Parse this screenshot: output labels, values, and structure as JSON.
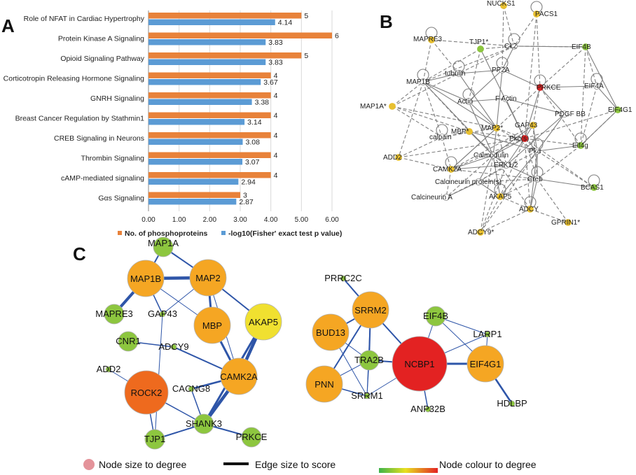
{
  "panels": {
    "a": "A",
    "b": "B",
    "c": "C"
  },
  "chart_data": [
    {
      "type": "bar",
      "orientation": "horizontal",
      "categories": [
        "Role of NFAT in Cardiac Hypertrophy",
        "Protein Kinase A Signaling",
        "Opioid Signaling Pathway",
        "Corticotropin Releasing Hormone Signaling",
        "GNRH Signaling",
        "Breast Cancer Regulation by Stathmin1",
        "CREB Signaling in Neurons",
        "Thrombin Signaling",
        "cAMP-mediated signaling",
        "Gαs Signaling"
      ],
      "series": [
        {
          "name": "No. of phosphoproteins",
          "color": "#e8823a",
          "values": [
            5,
            6,
            5,
            4,
            4,
            4,
            4,
            4,
            4,
            3
          ],
          "labels": [
            "5",
            "6",
            "5",
            "4",
            "4",
            "4",
            "4",
            "4",
            "4",
            "3"
          ]
        },
        {
          "name": "-log10(Fisher' exact test p value)",
          "color": "#5b9bd5",
          "values": [
            4.14,
            3.83,
            3.83,
            3.67,
            3.38,
            3.14,
            3.08,
            3.07,
            2.94,
            2.87
          ],
          "labels": [
            "4.14",
            "3.83",
            "3.83",
            "3.67",
            "3.38",
            "3.14",
            "3.08",
            "3.07",
            "2.94",
            "2.87"
          ]
        }
      ],
      "xlim": [
        0,
        6
      ],
      "xticks": [
        "0.00",
        "1.00",
        "2.00",
        "3.00",
        "4.00",
        "5.00",
        "6.00"
      ],
      "grid": true,
      "legend": "bottom"
    }
  ],
  "network_b": {
    "nodes": [
      {
        "id": "NUCKS1",
        "label": "NUCKS1",
        "color": "#e8c030",
        "shape": "ring"
      },
      {
        "id": "PACS1",
        "label": "PACS1",
        "color": "#e8c030",
        "shape": "ring"
      },
      {
        "id": "MAPRE3",
        "label": "MAPRE3",
        "color": "#e8c030",
        "shape": "ring"
      },
      {
        "id": "TJP1",
        "label": "TJP1*",
        "color": "#8dc63f",
        "shape": "ring"
      },
      {
        "id": "Ck2",
        "label": "Ck2",
        "color": "#ffffff",
        "shape": "ring"
      },
      {
        "id": "EIF4B",
        "label": "EIF4B",
        "color": "#8dc63f",
        "shape": "ring"
      },
      {
        "id": "tubulin",
        "label": "tubulin",
        "color": "#ffffff",
        "shape": "ring"
      },
      {
        "id": "PP2A",
        "label": "PP2A",
        "color": "#ffffff",
        "shape": "ring"
      },
      {
        "id": "MAP1B",
        "label": "MAP1B",
        "color": "#ffffff",
        "shape": "ring"
      },
      {
        "id": "PRKCE",
        "label": "PRKCE",
        "color": "#d42020",
        "shape": "ring"
      },
      {
        "id": "EIF4A",
        "label": "EIF4A",
        "color": "#ffffff",
        "shape": "ring"
      },
      {
        "id": "Actin",
        "label": "Actin",
        "color": "#ffffff",
        "shape": "ring"
      },
      {
        "id": "FActin",
        "label": "F Actin",
        "color": "#ffffff",
        "shape": "ring"
      },
      {
        "id": "EIF4G1",
        "label": "EIF4G1",
        "color": "#8dc63f",
        "shape": "ring"
      },
      {
        "id": "MAP1A",
        "label": "MAP1A*",
        "color": "#e8c030",
        "shape": "ring"
      },
      {
        "id": "PDGFBB",
        "label": "PDGF BB",
        "color": "#ffffff",
        "shape": "ring"
      },
      {
        "id": "MBP",
        "label": "MBP*",
        "color": "#e8c030",
        "shape": "ring"
      },
      {
        "id": "MAP2",
        "label": "MAP2*",
        "color": "#e8c030",
        "shape": "ring"
      },
      {
        "id": "Pkc",
        "label": "Pkc(s)",
        "color": "#d42020",
        "shape": "ring"
      },
      {
        "id": "GAP43",
        "label": "GAP43",
        "color": "#e8c030",
        "shape": "ring"
      },
      {
        "id": "calpain",
        "label": "calpain",
        "color": "#ffffff",
        "shape": "ring"
      },
      {
        "id": "Eif4g",
        "label": "Eif4g",
        "color": "#8dc63f",
        "shape": "ring"
      },
      {
        "id": "Calmodulin",
        "label": "Calmodulin",
        "color": "#ffffff",
        "shape": "ring"
      },
      {
        "id": "Pka",
        "label": "Pka",
        "color": "#ffffff",
        "shape": "ring"
      },
      {
        "id": "ADD2",
        "label": "ADD2",
        "color": "#e8c030",
        "shape": "ring"
      },
      {
        "id": "CAMK2A",
        "label": "CAMK2A",
        "color": "#e8c030",
        "shape": "ring"
      },
      {
        "id": "ERK12",
        "label": "ERK1/2",
        "color": "#ffffff",
        "shape": "ring"
      },
      {
        "id": "Creb",
        "label": "Creb",
        "color": "#ffffff",
        "shape": "ring"
      },
      {
        "id": "BCAS1",
        "label": "BCAS1",
        "color": "#8dc63f",
        "shape": "ring"
      },
      {
        "id": "CalcProt",
        "label": "Calcineurin protein(s)",
        "color": "#ffffff",
        "shape": "ring"
      },
      {
        "id": "CalcA",
        "label": "Calcineurin A",
        "color": "#ffffff",
        "shape": "ring"
      },
      {
        "id": "AKAP5",
        "label": "AKAP5",
        "color": "#e8c030",
        "shape": "ring"
      },
      {
        "id": "ADCY",
        "label": "ADCY",
        "color": "#e8c030",
        "shape": "ring"
      },
      {
        "id": "GPRIN1",
        "label": "GPRIN1*",
        "color": "#e8c030",
        "shape": "ring"
      },
      {
        "id": "ADCY9",
        "label": "ADCY9*",
        "color": "#e8c030",
        "shape": "ring"
      }
    ]
  },
  "network_c": {
    "nodes": [
      {
        "id": "MAP1A",
        "label": "MAP1A",
        "color": "#8dc63f",
        "size": "s"
      },
      {
        "id": "MAP1B",
        "label": "MAP1B",
        "color": "#f5a623",
        "size": "l"
      },
      {
        "id": "MAP2",
        "label": "MAP2",
        "color": "#f5a623",
        "size": "l"
      },
      {
        "id": "MAPRE3",
        "label": "MAPRE3",
        "color": "#8dc63f",
        "size": "s"
      },
      {
        "id": "GAP43",
        "label": "GAP43",
        "color": "#8dc63f",
        "size": "t"
      },
      {
        "id": "MBP",
        "label": "MBP",
        "color": "#f5a623",
        "size": "l"
      },
      {
        "id": "AKAP5",
        "label": "AKAP5",
        "color": "#f0e030",
        "size": "l"
      },
      {
        "id": "CNR1",
        "label": "CNR1",
        "color": "#8dc63f",
        "size": "s"
      },
      {
        "id": "ADCY9",
        "label": "ADCY9",
        "color": "#8dc63f",
        "size": "t"
      },
      {
        "id": "ADD2",
        "label": "ADD2",
        "color": "#8dc63f",
        "size": "t"
      },
      {
        "id": "CAMK2A",
        "label": "CAMK2A",
        "color": "#f5a623",
        "size": "l"
      },
      {
        "id": "ROCK2",
        "label": "ROCK2",
        "color": "#ee6a1e",
        "size": "xl"
      },
      {
        "id": "CACNG8",
        "label": "CACNG8",
        "color": "#8dc63f",
        "size": "t"
      },
      {
        "id": "SHANK3",
        "label": "SHANK3",
        "color": "#8dc63f",
        "size": "s"
      },
      {
        "id": "TJP1",
        "label": "TJP1",
        "color": "#8dc63f",
        "size": "s"
      },
      {
        "id": "PRKCE",
        "label": "PRKCE",
        "color": "#8dc63f",
        "size": "s"
      },
      {
        "id": "PRRC2C",
        "label": "PRRC2C",
        "color": "#8dc63f",
        "size": "t"
      },
      {
        "id": "SRRM2",
        "label": "SRRM2",
        "color": "#f5a623",
        "size": "l"
      },
      {
        "id": "BUD13",
        "label": "BUD13",
        "color": "#f5a623",
        "size": "l"
      },
      {
        "id": "TRA2B",
        "label": "TRA2B",
        "color": "#8dc63f",
        "size": "s"
      },
      {
        "id": "PNN",
        "label": "PNN",
        "color": "#f5a623",
        "size": "l"
      },
      {
        "id": "SRRM1",
        "label": "SRRM1",
        "color": "#8dc63f",
        "size": "t"
      },
      {
        "id": "NCBP1",
        "label": "NCBP1",
        "color": "#e32222",
        "size": "xxl"
      },
      {
        "id": "EIF4B",
        "label": "EIF4B",
        "color": "#8dc63f",
        "size": "s"
      },
      {
        "id": "LARP1",
        "label": "LARP1",
        "color": "#8dc63f",
        "size": "t"
      },
      {
        "id": "EIF4G1",
        "label": "EIF4G1",
        "color": "#f5a623",
        "size": "l"
      },
      {
        "id": "ANP32B",
        "label": "ANP32B",
        "color": "#8dc63f",
        "size": "t"
      },
      {
        "id": "HDLBP",
        "label": "HDLBP",
        "color": "#8dc63f",
        "size": "t"
      }
    ]
  },
  "legend_c": {
    "node_size": "Node size to degree",
    "edge_size": "Edge size to score",
    "node_colour": "Node colour to degree"
  }
}
